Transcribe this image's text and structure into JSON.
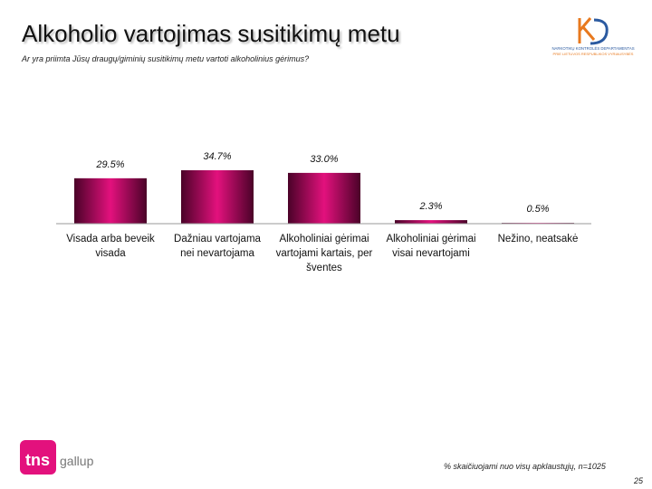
{
  "header": {
    "title": "Alkoholio vartojimas susitikimų metu",
    "logo_line_1": "NARKOTIKŲ KONTROLĖS DEPARTAMENTAS",
    "logo_line_2": "PRIE LIETUVOS RESPUBLIKOS VYRIAUSYBĖS"
  },
  "chart_data": {
    "type": "bar",
    "subtitle": "Ar yra priimta Jūsų draugų/giminių susitikimų metu vartoti alkoholinius gėrimus?",
    "categories": [
      "Visada arba beveik visada",
      "Dažniau vartojama nei nevartojama",
      "Alkoholiniai gėrimai vartojami kartais, per šventes",
      "Alkoholiniai gėrimai visai nevartojami",
      "Nežino, neatsakė"
    ],
    "values": [
      29.5,
      34.7,
      33.0,
      2.3,
      0.5
    ],
    "value_labels": [
      "29.5%",
      "34.7%",
      "33.0%",
      "2.3%",
      "0.5%"
    ],
    "color": "#e3117d"
  },
  "footer": {
    "note": "% skaičiuojami nuo visų apklaustųjų, n=1025",
    "page": "25",
    "brand_1": "tns",
    "brand_2": "gallup"
  }
}
